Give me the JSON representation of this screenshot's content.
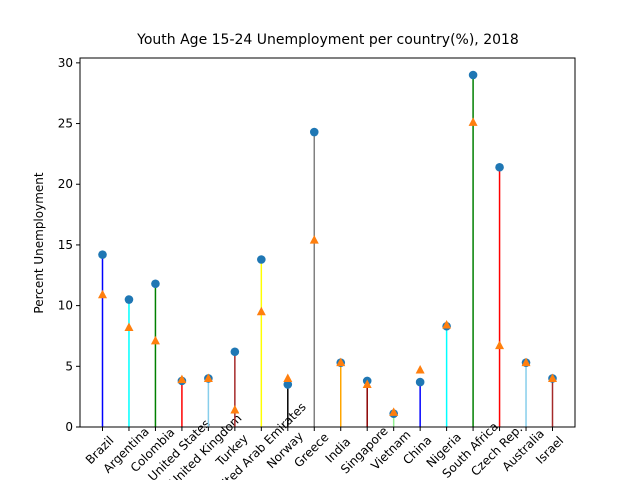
{
  "chart_data": {
    "type": "stem",
    "title": "Youth Age 15-24 Unemployment per country(%), 2018",
    "y_label": "Percent Unemployment",
    "categories": [
      "Brazil",
      "Argentina",
      "Colombia",
      "United States",
      "United Kingdom",
      "Turkey",
      "United Arab Emirates",
      "Norway",
      "Greece",
      "India",
      "Singapore",
      "Vietnam",
      "China",
      "Nigeria",
      "South Africa",
      "Czech Rep.",
      "Australia",
      "Israel"
    ],
    "stem_colors": [
      "#0000ff",
      "#00ffff",
      "#008000",
      "#ff0000",
      "#87ceeb",
      "#a52a2a",
      "#ffff00",
      "#000000",
      "#808080",
      "#ffa500",
      "#8b0000",
      "#90ee90",
      "#0000ff",
      "#00ffff",
      "#008000",
      "#ff0000",
      "#87ceeb",
      "#a52a2a"
    ],
    "series": [
      {
        "color": "#1f77b4",
        "marker": "circle",
        "values": [
          14.2,
          10.5,
          11.8,
          3.8,
          4.0,
          6.2,
          13.8,
          3.5,
          24.3,
          5.3,
          3.8,
          1.1,
          3.7,
          8.3,
          29.0,
          21.4,
          5.3,
          4.0
        ]
      },
      {
        "color": "#ff7f0e",
        "marker": "triangle",
        "values": [
          10.9,
          8.2,
          7.1,
          3.9,
          4.0,
          1.4,
          9.5,
          4.0,
          15.4,
          5.3,
          3.5,
          1.2,
          4.7,
          8.4,
          25.1,
          6.7,
          5.3,
          4.0
        ]
      }
    ],
    "ylim": [
      0,
      30.4
    ],
    "yticks": [
      0,
      5,
      10,
      15,
      20,
      25,
      30
    ]
  }
}
